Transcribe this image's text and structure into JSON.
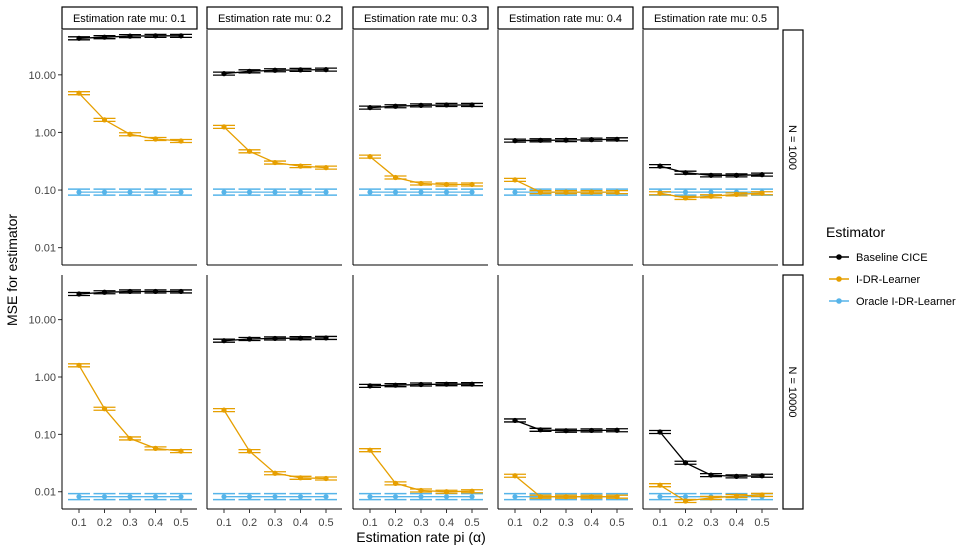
{
  "chart_data": {
    "type": "line",
    "title": "",
    "xlabel": "Estimation rate pi (α)",
    "ylabel": "MSE for estimator",
    "y_scale": "log10",
    "ylim": [
      0.005,
      60
    ],
    "y_ticks": [
      0.01,
      0.1,
      1,
      10
    ],
    "y_tick_labels": [
      "0.01",
      "0.10",
      "1.00",
      "10.00"
    ],
    "x": [
      0.1,
      0.2,
      0.3,
      0.4,
      0.5
    ],
    "x_tick_labels": [
      "0.1",
      "0.2",
      "0.3",
      "0.4",
      "0.5"
    ],
    "grid": false,
    "legend_position": "right",
    "legend_title": "Estimator",
    "column_labels": [
      "Estimation rate mu: 0.1",
      "Estimation rate mu: 0.2",
      "Estimation rate mu: 0.3",
      "Estimation rate mu: 0.4",
      "Estimation rate mu: 0.5"
    ],
    "row_labels": [
      "N = 1000",
      "N = 10000"
    ],
    "series": [
      {
        "name": "Baseline CICE",
        "color": "#000000"
      },
      {
        "name": "I-DR-Learner",
        "color": "#E69F00"
      },
      {
        "name": "Oracle I-DR-Learner",
        "color": "#56B4E9"
      }
    ],
    "panels": [
      [
        {
          "values": [
            [
              43,
              45,
              47,
              47.5,
              47.5
            ],
            [
              4.8,
              1.65,
              0.93,
              0.77,
              0.71
            ],
            [
              0.092,
              0.092,
              0.092,
              0.092,
              0.092
            ]
          ]
        },
        {
          "values": [
            [
              10.5,
              11.5,
              12,
              12.2,
              12.3
            ],
            [
              1.25,
              0.47,
              0.3,
              0.26,
              0.245
            ],
            [
              0.092,
              0.092,
              0.092,
              0.092,
              0.092
            ]
          ]
        },
        {
          "values": [
            [
              2.7,
              2.85,
              2.95,
              3.0,
              3.0
            ],
            [
              0.38,
              0.165,
              0.13,
              0.125,
              0.125
            ],
            [
              0.092,
              0.092,
              0.092,
              0.092,
              0.092
            ]
          ]
        },
        {
          "values": [
            [
              0.72,
              0.73,
              0.735,
              0.75,
              0.76
            ],
            [
              0.15,
              0.092,
              0.092,
              0.092,
              0.092
            ],
            [
              0.092,
              0.092,
              0.092,
              0.092,
              0.092
            ]
          ]
        },
        {
          "values": [
            [
              0.26,
              0.2,
              0.18,
              0.18,
              0.185
            ],
            [
              0.088,
              0.073,
              0.078,
              0.084,
              0.088
            ],
            [
              0.092,
              0.092,
              0.092,
              0.092,
              0.092
            ]
          ]
        }
      ],
      [
        {
          "values": [
            [
              28,
              30,
              31,
              31,
              31
            ],
            [
              1.6,
              0.28,
              0.085,
              0.057,
              0.051
            ],
            [
              0.0082,
              0.0082,
              0.0082,
              0.0082,
              0.0082
            ]
          ]
        },
        {
          "values": [
            [
              4.3,
              4.6,
              4.7,
              4.75,
              4.8
            ],
            [
              0.265,
              0.051,
              0.021,
              0.0175,
              0.017
            ],
            [
              0.0082,
              0.0082,
              0.0082,
              0.0082,
              0.0082
            ]
          ]
        },
        {
          "values": [
            [
              0.7,
              0.72,
              0.74,
              0.75,
              0.75
            ],
            [
              0.053,
              0.014,
              0.0105,
              0.01,
              0.0102
            ],
            [
              0.0082,
              0.0082,
              0.0082,
              0.0082,
              0.0082
            ]
          ]
        },
        {
          "values": [
            [
              0.175,
              0.12,
              0.116,
              0.117,
              0.118
            ],
            [
              0.019,
              0.0082,
              0.0082,
              0.0082,
              0.0082
            ],
            [
              0.0082,
              0.0082,
              0.0082,
              0.0082,
              0.0082
            ]
          ]
        },
        {
          "values": [
            [
              0.11,
              0.032,
              0.0195,
              0.0185,
              0.019
            ],
            [
              0.013,
              0.0069,
              0.0078,
              0.0084,
              0.0088
            ],
            [
              0.0082,
              0.0082,
              0.0082,
              0.0082,
              0.0082
            ]
          ]
        }
      ]
    ]
  }
}
